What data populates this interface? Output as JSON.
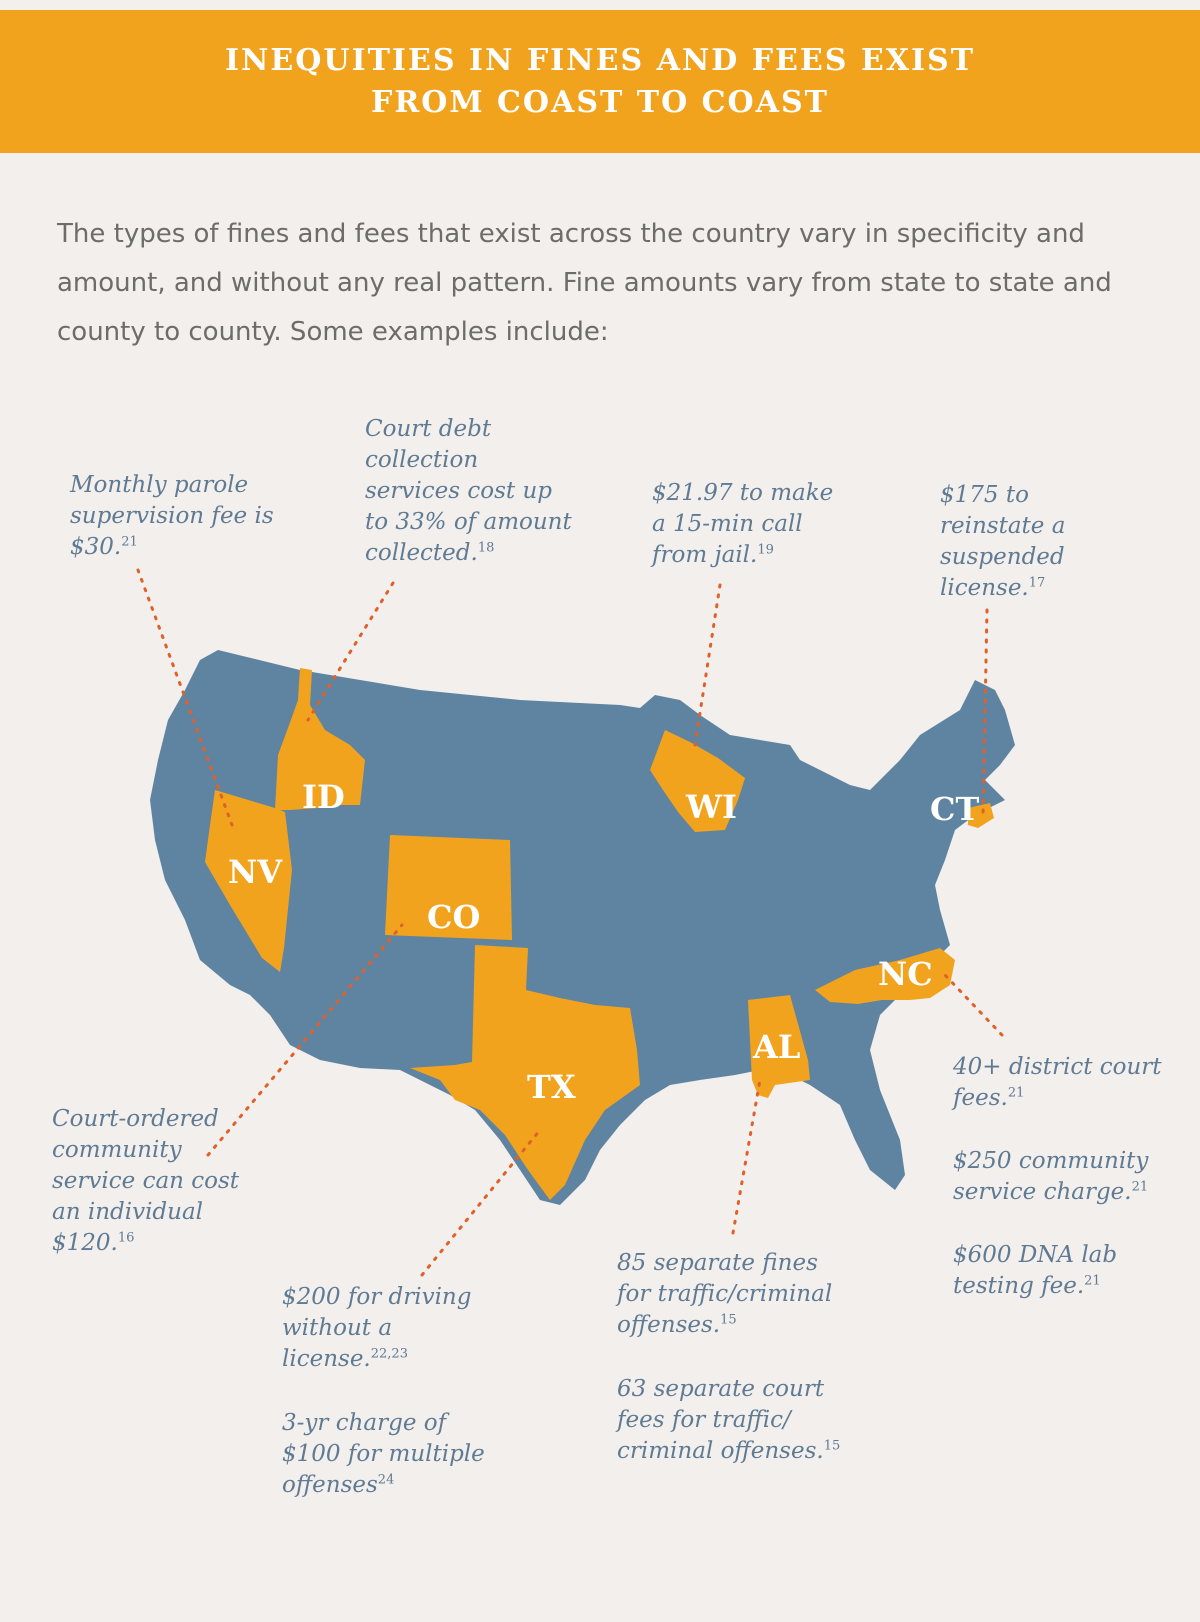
{
  "banner": {
    "line1": "INEQUITIES IN FINES AND FEES EXIST",
    "line2": "FROM COAST TO COAST"
  },
  "intro": "The types of fines and fees that exist across the country vary in specificity and amount, and without any real pattern. Fine amounts vary from state to state and county to county. Some examples include:",
  "colors": {
    "banner": "#f2a31e",
    "state_highlight": "#f2a31e",
    "country": "#5e84a1",
    "leader_line": "#e0602a",
    "note_text": "#5f7a93",
    "background": "#f2efec"
  },
  "states": {
    "nv": "NV",
    "id": "ID",
    "co": "CO",
    "tx": "TX",
    "wi": "WI",
    "al": "AL",
    "nc": "NC",
    "ct": "CT"
  },
  "notes": {
    "nv": {
      "text": "Monthly parole supervision fee is $30.",
      "ref": "21"
    },
    "id": {
      "text": "Court debt collection services cost up to 33% of amount collected.",
      "ref": "18"
    },
    "wi": {
      "text": "$21.97 to make a 15-min call from jail.",
      "ref": "19"
    },
    "ct": {
      "text": "$175 to reinstate a suspended license.",
      "ref": "17"
    },
    "co": {
      "text": "Court-ordered community service can cost an individual $120.",
      "ref": "16"
    },
    "tx1": {
      "text": "$200 for driving without a license.",
      "ref": "22,23"
    },
    "tx2": {
      "text": "3-yr charge of $100 for multiple offenses",
      "ref": "24"
    },
    "al1": {
      "text": "85 separate fines for traffic/criminal offenses.",
      "ref": "15"
    },
    "al2": {
      "text": "63 separate court fees for traffic/ criminal offenses.",
      "ref": "15"
    },
    "nc1": {
      "text": "40+ district court fees.",
      "ref": "21"
    },
    "nc2": {
      "text": "$250 community service charge.",
      "ref": "21"
    },
    "nc3": {
      "text": "$600 DNA lab testing fee.",
      "ref": "21"
    }
  }
}
